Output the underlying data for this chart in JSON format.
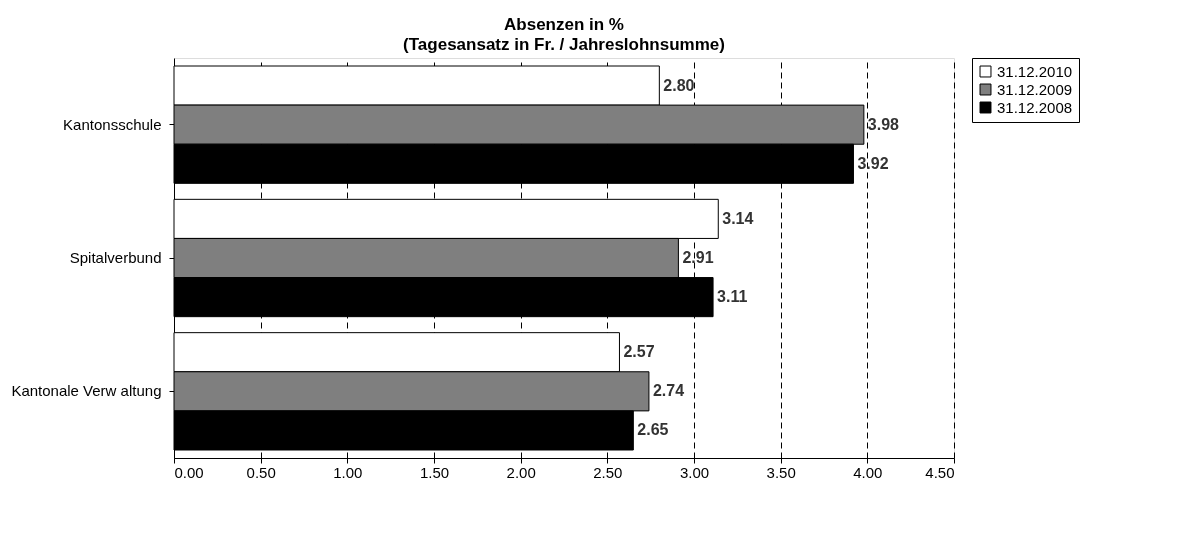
{
  "chart_data": {
    "type": "bar",
    "orientation": "horizontal",
    "title": "Absenzen in %",
    "subtitle": "(Tagesansatz in Fr. / Jahreslohnsumme)",
    "categories": [
      "Kantonsschule",
      "Spitalverbund",
      "Kantonale Verw altung"
    ],
    "series": [
      {
        "name": "31.12.2010",
        "color": "#ffffff",
        "values": [
          2.8,
          3.14,
          2.57
        ],
        "value_labels": [
          "2.80",
          "3.14",
          "2.57"
        ]
      },
      {
        "name": "31.12.2009",
        "color": "#7f7f7f",
        "values": [
          3.98,
          2.91,
          2.74
        ],
        "value_labels": [
          "3.98",
          "2.91",
          "2.74"
        ]
      },
      {
        "name": "31.12.2008",
        "color": "#000000",
        "values": [
          3.92,
          3.11,
          2.65
        ],
        "value_labels": [
          "3.92",
          "3.11",
          "2.65"
        ]
      }
    ],
    "xlim": [
      0,
      4.5
    ],
    "xticks": [
      {
        "value": 0,
        "label": "0.00"
      },
      {
        "value": 0.5,
        "label": "0.50"
      },
      {
        "value": 1,
        "label": "1.00"
      },
      {
        "value": 1.5,
        "label": "1.50"
      },
      {
        "value": 2,
        "label": "2.00"
      },
      {
        "value": 2.5,
        "label": "2.50"
      },
      {
        "value": 3,
        "label": "3.00"
      },
      {
        "value": 3.5,
        "label": "3.50"
      },
      {
        "value": 4,
        "label": "4.00"
      },
      {
        "value": 4.5,
        "label": "4.50"
      }
    ],
    "grid": "x",
    "legend": "right"
  }
}
